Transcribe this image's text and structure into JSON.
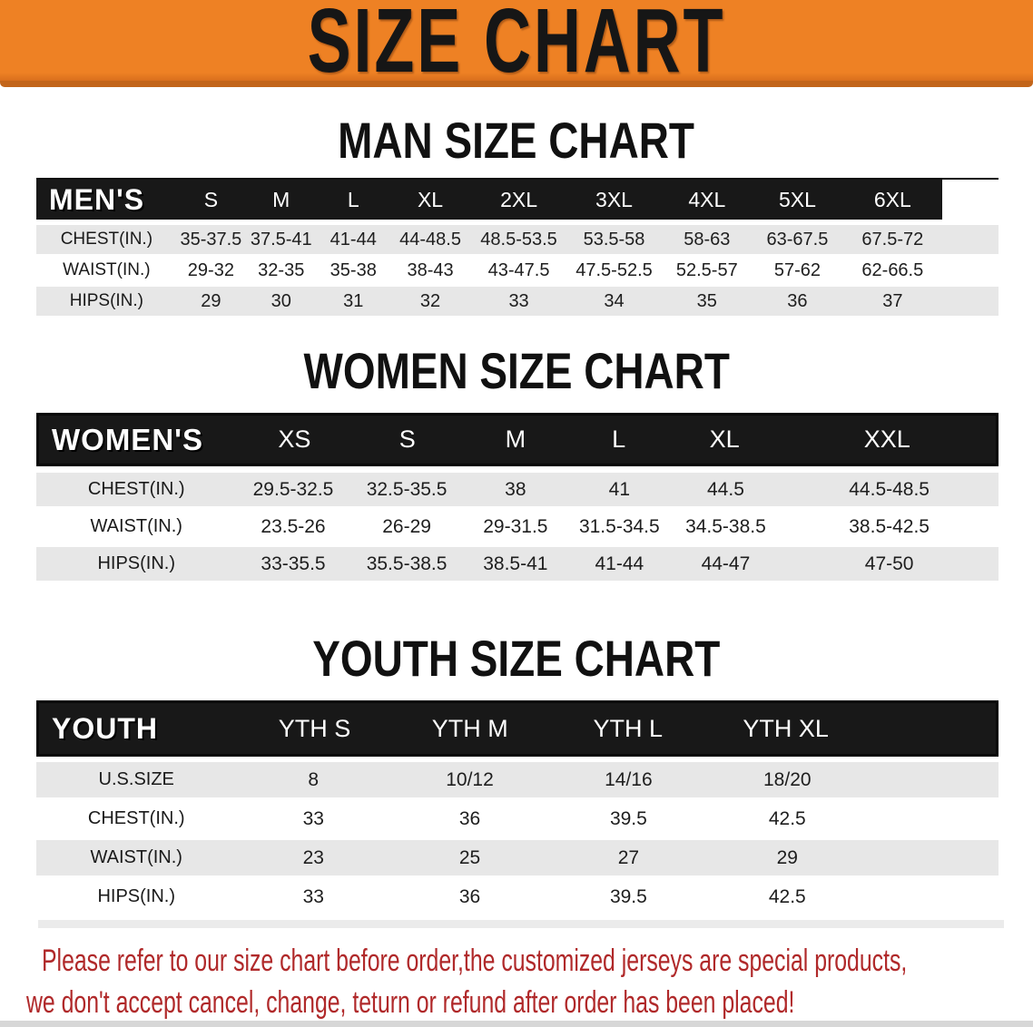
{
  "banner": {
    "title": "SIZE CHART"
  },
  "sections": [
    {
      "heading": "MAN SIZE CHART",
      "table": {
        "header_label": "MEN'S",
        "columns": [
          "S",
          "M",
          "L",
          "XL",
          "2XL",
          "3XL",
          "4XL",
          "5XL",
          "6XL"
        ],
        "rows": [
          {
            "label": "CHEST(IN.)",
            "values": [
              "35-37.5",
              "37.5-41",
              "41-44",
              "44-48.5",
              "48.5-53.5",
              "53.5-58",
              "58-63",
              "63-67.5",
              "67.5-72"
            ]
          },
          {
            "label": "WAIST(IN.)",
            "values": [
              "29-32",
              "32-35",
              "35-38",
              "38-43",
              "43-47.5",
              "47.5-52.5",
              "52.5-57",
              "57-62",
              "62-66.5"
            ]
          },
          {
            "label": "HIPS(IN.)",
            "values": [
              "29",
              "30",
              "31",
              "32",
              "33",
              "34",
              "35",
              "36",
              "37"
            ]
          }
        ]
      }
    },
    {
      "heading": "WOMEN SIZE CHART",
      "table": {
        "header_label": "WOMEN'S",
        "columns": [
          "XS",
          "S",
          "M",
          "L",
          "XL",
          "XXL"
        ],
        "rows": [
          {
            "label": "CHEST(IN.)",
            "values": [
              "29.5-32.5",
              "32.5-35.5",
              "38",
              "41",
              "44.5",
              "44.5-48.5"
            ]
          },
          {
            "label": "WAIST(IN.)",
            "values": [
              "23.5-26",
              "26-29",
              "29-31.5",
              "31.5-34.5",
              "34.5-38.5",
              "38.5-42.5"
            ]
          },
          {
            "label": "HIPS(IN.)",
            "values": [
              "33-35.5",
              "35.5-38.5",
              "38.5-41",
              "41-44",
              "44-47",
              "47-50"
            ]
          }
        ]
      }
    },
    {
      "heading": "YOUTH SIZE CHART",
      "table": {
        "header_label": "YOUTH",
        "columns": [
          "YTH S",
          "YTH M",
          "YTH L",
          "YTH XL"
        ],
        "rows": [
          {
            "label": "U.S.SIZE",
            "values": [
              "8",
              "10/12",
              "14/16",
              "18/20"
            ]
          },
          {
            "label": "CHEST(IN.)",
            "values": [
              "33",
              "36",
              "39.5",
              "42.5"
            ]
          },
          {
            "label": "WAIST(IN.)",
            "values": [
              "23",
              "25",
              "27",
              "29"
            ]
          },
          {
            "label": "HIPS(IN.)",
            "values": [
              "33",
              "36",
              "39.5",
              "42.5"
            ]
          }
        ]
      }
    }
  ],
  "footer": {
    "line1": "Please refer to our size chart before order,the customized jerseys are special products,",
    "line2": "we don't accept cancel, change, teturn or refund after order has been placed!"
  },
  "colors": {
    "banner_bg": "#ee8124",
    "banner_edge": "#c2651a",
    "bar": "#181818",
    "row_gray": "#e7e7e7",
    "text_red": "#b0292a",
    "heading_text": "#111111",
    "header_text": "#ffffff"
  }
}
